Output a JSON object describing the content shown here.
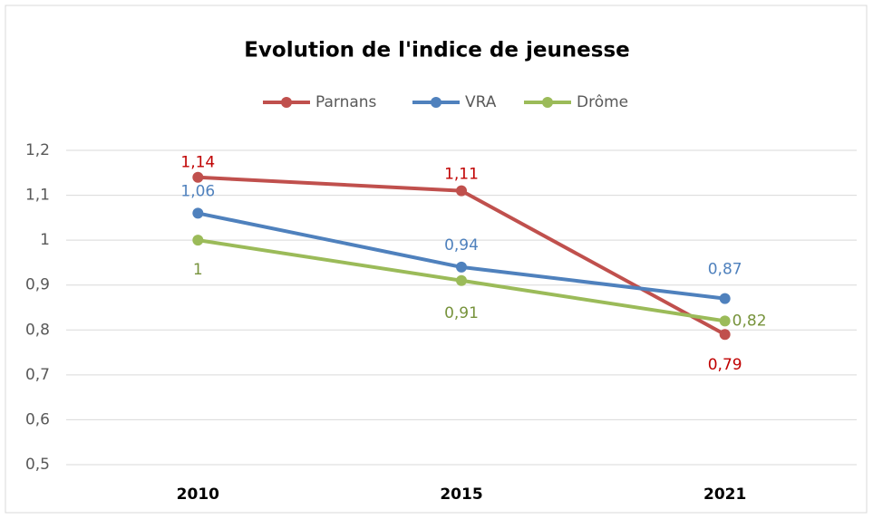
{
  "chart_data": {
    "type": "line",
    "title": "Evolution de l'indice de jeunesse",
    "categories": [
      "2010",
      "2015",
      "2021"
    ],
    "series": [
      {
        "name": "Parnans",
        "color": "#c0504d",
        "label_color": "#c00000",
        "values": [
          1.14,
          1.11,
          0.79
        ],
        "value_labels": [
          "1,14",
          "1,11",
          "0,79"
        ]
      },
      {
        "name": "VRA",
        "color": "#4f81bd",
        "label_color": "#4f81bd",
        "values": [
          1.06,
          0.94,
          0.87
        ],
        "value_labels": [
          "1,06",
          "0,94",
          "0,87"
        ]
      },
      {
        "name": "Drôme",
        "color": "#9bbb59",
        "label_color": "#77933c",
        "values": [
          1,
          0.91,
          0.82
        ],
        "value_labels": [
          "1",
          "0,91",
          "0,82"
        ]
      }
    ],
    "ylim": [
      0.5,
      1.2
    ],
    "yticks": [
      {
        "value": 0.5,
        "label": "0,5"
      },
      {
        "value": 0.6,
        "label": "0,6"
      },
      {
        "value": 0.7,
        "label": "0,7"
      },
      {
        "value": 0.8,
        "label": "0,8"
      },
      {
        "value": 0.9,
        "label": "0,9"
      },
      1,
      {
        "value": 1.1,
        "label": "1,1"
      },
      {
        "value": 1.2,
        "label": "1,2"
      }
    ],
    "grid": true,
    "legend": "top"
  }
}
